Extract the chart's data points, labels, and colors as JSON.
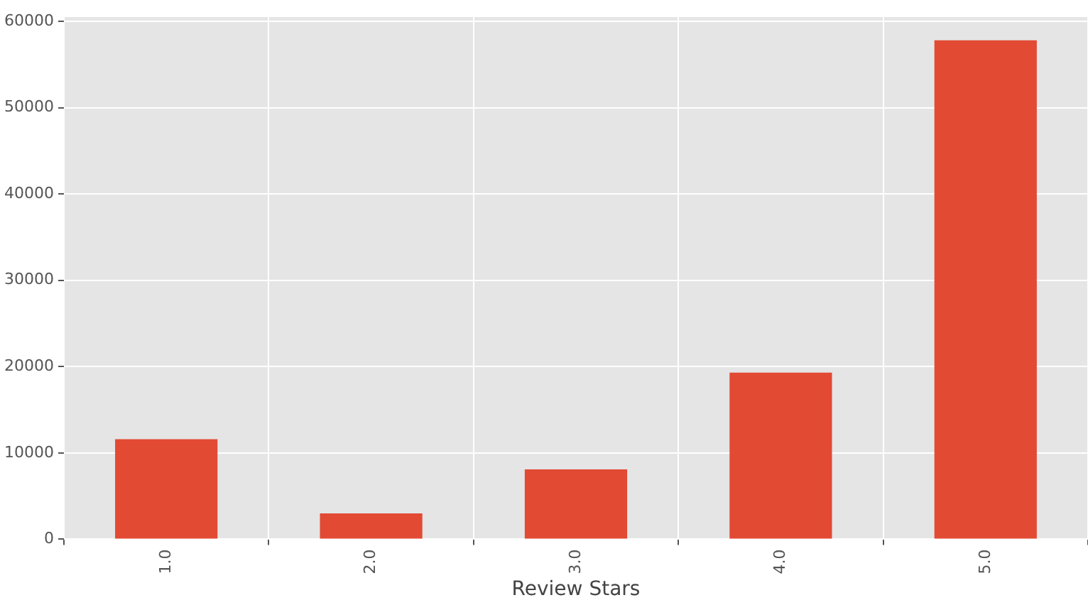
{
  "chart_data": {
    "type": "bar",
    "xlabel": "Review Stars",
    "categories": [
      "1.0",
      "2.0",
      "3.0",
      "4.0",
      "5.0"
    ],
    "values": [
      11600,
      3000,
      8100,
      19300,
      57800
    ],
    "color": "#e24a33",
    "ylim": [
      0,
      60500
    ],
    "yticks": [
      0,
      10000,
      20000,
      30000,
      40000,
      50000,
      60000
    ],
    "grid": true,
    "legend": false
  }
}
